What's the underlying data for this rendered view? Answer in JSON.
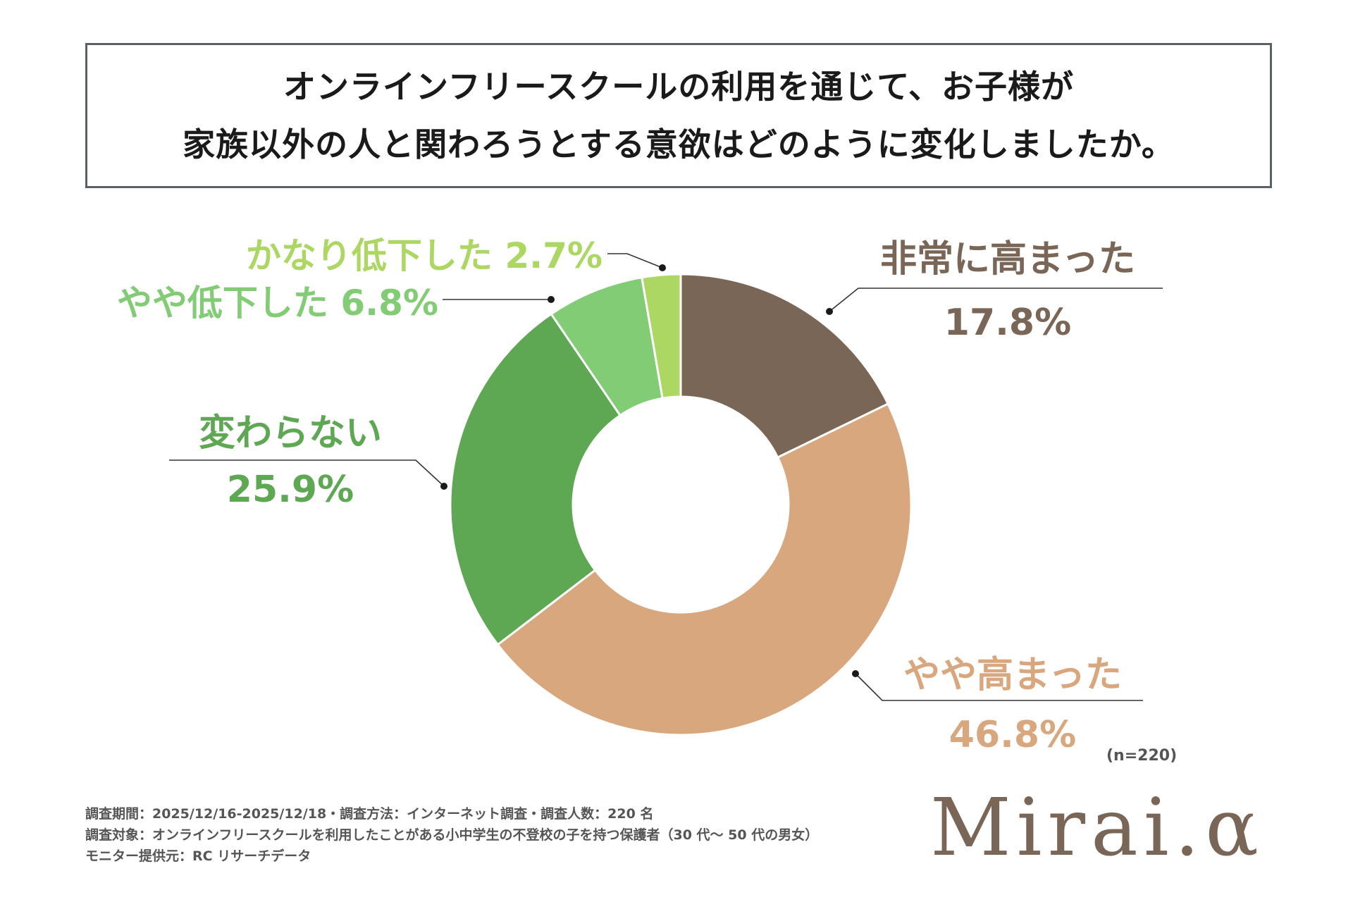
{
  "title": {
    "line1": "オンラインフリースクールの利用を通じて、お子様が",
    "line2": "家族以外の人と関わろうとする意欲はどのように変化しましたか。"
  },
  "chart_data": {
    "type": "pie",
    "donut": true,
    "slices": [
      {
        "label": "非常に高まった",
        "value": 17.8,
        "display": "17.8%",
        "color": "#7a6657"
      },
      {
        "label": "やや高まった",
        "value": 46.8,
        "display": "46.8%",
        "color": "#d9a77e"
      },
      {
        "label": "変わらない",
        "value": 25.9,
        "display": "25.9%",
        "color": "#5ea853"
      },
      {
        "label": "やや低下した",
        "value": 6.8,
        "display": "6.8%",
        "color": "#82cc75"
      },
      {
        "label": "かなり低下した",
        "value": 2.7,
        "display": "2.7%",
        "color": "#acd762"
      }
    ]
  },
  "note": "(n=220)",
  "footer": {
    "line1": "調査期間：2025/12/16-2025/12/18・調査方法：インターネット調査・調査人数：220 名",
    "line2": "調査対象：オンラインフリースクールを利用したことがある小中学生の不登校の子を持つ保護者（30 代〜 50 代の男女）",
    "line3": "モニター提供元：RC リサーチデータ"
  },
  "brand": "Mirai.α"
}
